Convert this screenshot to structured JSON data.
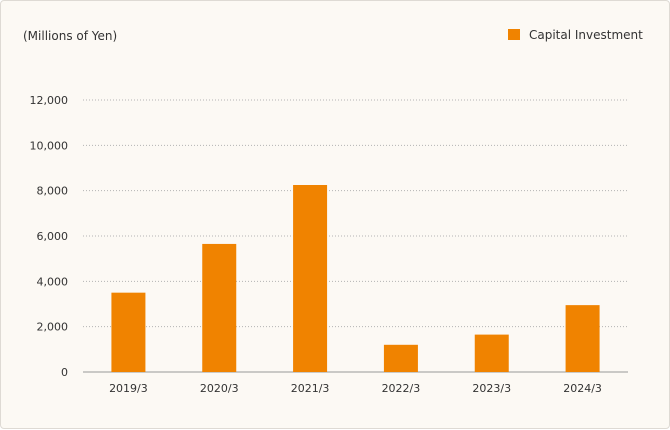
{
  "chart_data": {
    "type": "bar",
    "unit_label": "(Millions of Yen)",
    "categories": [
      "2019/3",
      "2020/3",
      "2021/3",
      "2022/3",
      "2023/3",
      "2024/3"
    ],
    "series": [
      {
        "name": "Capital Investment",
        "values": [
          3500,
          5650,
          8250,
          1200,
          1650,
          2950
        ]
      }
    ],
    "yticks": [
      "0",
      "2,000",
      "4,000",
      "6,000",
      "8,000",
      "10,000",
      "12,000"
    ],
    "ylim": [
      0,
      12000
    ],
    "grid": true,
    "legend_position": "top-right"
  },
  "colors": {
    "bar": "#f08300",
    "text": "#333333",
    "grid": "#b3b3b3",
    "axis": "#999999",
    "background": "#fcf9f4"
  }
}
